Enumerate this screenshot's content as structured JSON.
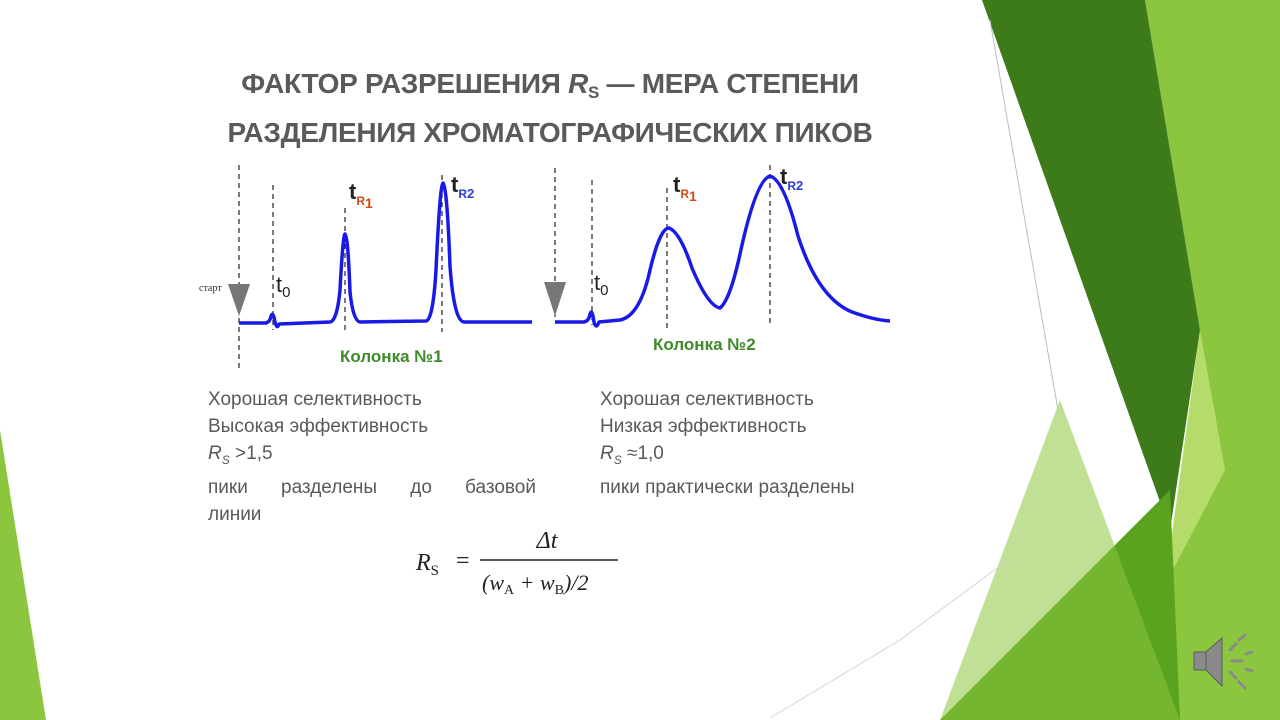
{
  "slide": {
    "title_line1_pre": "ФАКТОР РАЗРЕШЕНИЯ ",
    "title_rs": "R",
    "title_rs_sub": "S",
    "title_line1_post": " — МЕРА СТЕПЕНИ",
    "title_line2": "РАЗДЕЛЕНИЯ ХРОМАТОГРАФИЧЕСКИХ ПИКОВ"
  },
  "chart_left": {
    "start_label": "старт",
    "t0_main": "t",
    "t0_sub": "0",
    "tr1_main": "t",
    "tr1_r": "R",
    "tr1_n": "1",
    "tr2_main": "t",
    "tr2_r": "R",
    "tr2_n": "2",
    "column_label": "Колонка №1"
  },
  "chart_right": {
    "t0_main": "t",
    "t0_sub": "0",
    "tr1_main": "t",
    "tr1_r": "R",
    "tr1_n": "1",
    "tr2_main": "t",
    "tr2_r": "R",
    "tr2_n": "2",
    "column_label": "Колонка №2"
  },
  "desc_left": {
    "line1": "Хорошая селективность",
    "line2": "Высокая эффективность",
    "rs_symbol": "R",
    "rs_sub": "S",
    "rs_value": " >1,5",
    "line4": "пики разделены до базовой",
    "line5": "линии"
  },
  "desc_right": {
    "line1": "Хорошая селективность",
    "line2": "Низкая эффективность",
    "rs_symbol": "R",
    "rs_sub": "S",
    "rs_value": " ≈1,0",
    "line4": "пики практически разделены"
  },
  "formula": {
    "lhs": "R",
    "lhs_sub": "S",
    "eq": "=",
    "numerator": "Δt",
    "den_open": "(w",
    "den_a": "A",
    "den_plus": " + w",
    "den_b": "B",
    "den_close": ")/2"
  },
  "colors": {
    "curve": "#1a1ae6",
    "tr1": "#d04a1a",
    "tr2": "#2a3ad8",
    "column_label": "#3f8a2a",
    "title": "#5a5a5a",
    "dark_green": "#3d7a1a",
    "lime": "#8cc63f",
    "mid_green": "#5aa31e",
    "light_green": "#b5dc6a"
  },
  "icons": {
    "speaker": "speaker-icon"
  }
}
